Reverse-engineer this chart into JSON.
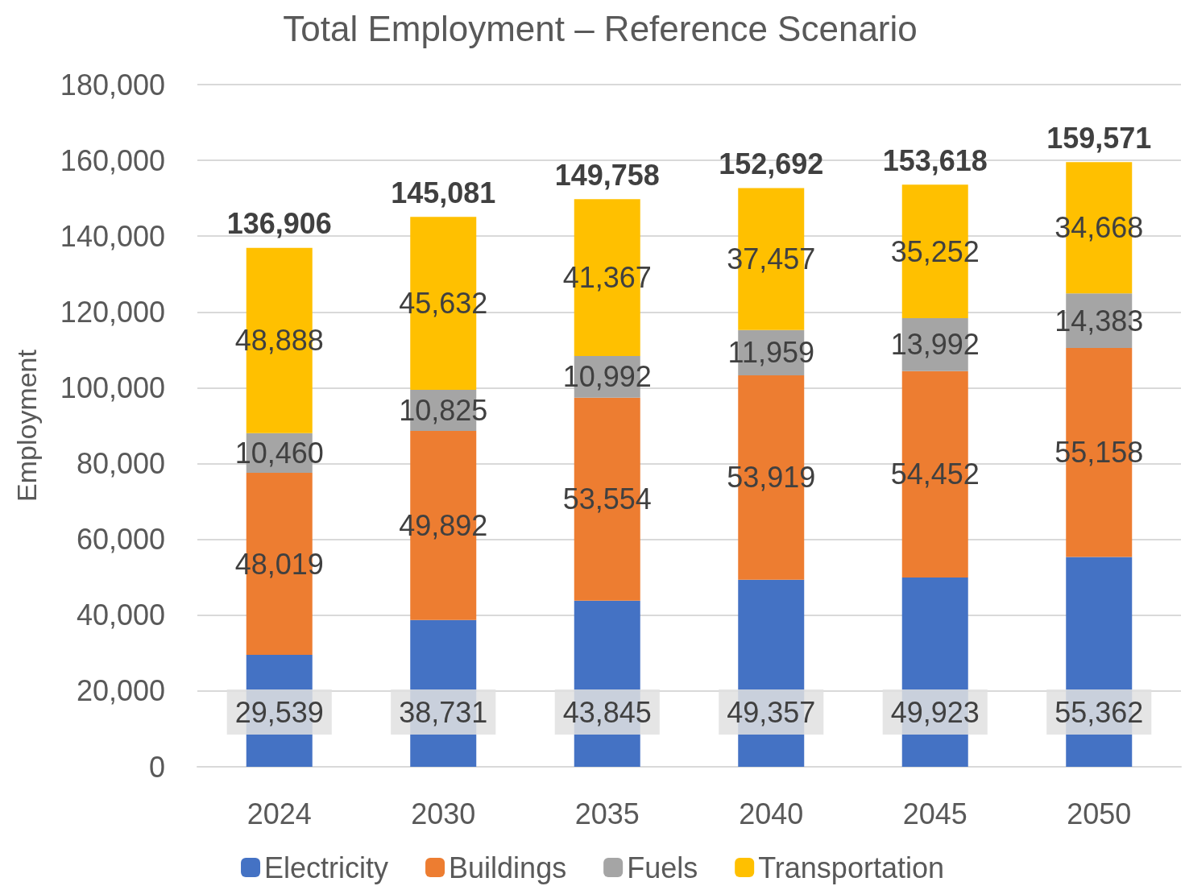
{
  "chart_data": {
    "type": "bar",
    "title": "Total Employment – Reference Scenario",
    "ylabel": "Employment",
    "categories": [
      "2024",
      "2030",
      "2035",
      "2040",
      "2045",
      "2050"
    ],
    "series": [
      {
        "name": "Electricity",
        "color": "#4472c4",
        "values": [
          29539,
          38731,
          43845,
          49357,
          49923,
          55362
        ],
        "value_labels": [
          "29,539",
          "38,731",
          "43,845",
          "49,357",
          "49,923",
          "55,362"
        ]
      },
      {
        "name": "Buildings",
        "color": "#ed7d31",
        "values": [
          48019,
          49892,
          53554,
          53919,
          54452,
          55158
        ],
        "value_labels": [
          "48,019",
          "49,892",
          "53,554",
          "53,919",
          "54,452",
          "55,158"
        ]
      },
      {
        "name": "Fuels",
        "color": "#a5a5a5",
        "values": [
          10460,
          10825,
          10992,
          11959,
          13992,
          14383
        ],
        "value_labels": [
          "10,460",
          "10,825",
          "10,992",
          "11,959",
          "13,992",
          "14,383"
        ]
      },
      {
        "name": "Transportation",
        "color": "#ffc000",
        "values": [
          48888,
          45632,
          41367,
          37457,
          35252,
          34668
        ],
        "value_labels": [
          "48,888",
          "45,632",
          "41,367",
          "37,457",
          "35,252",
          "34,668"
        ]
      }
    ],
    "stacked": true,
    "ylim": [
      0,
      180000
    ],
    "yticks": [
      0,
      {
        "value": 20000,
        "label": "20,000"
      },
      {
        "value": 40000,
        "label": "40,000"
      },
      {
        "value": 60000,
        "label": "60,000"
      },
      {
        "value": 80000,
        "label": "80,000"
      },
      {
        "value": 100000,
        "label": "100,000"
      },
      {
        "value": 120000,
        "label": "120,000"
      },
      {
        "value": 140000,
        "label": "140,000"
      },
      {
        "value": 160000,
        "label": "160,000"
      },
      {
        "value": 180000,
        "label": "180,000"
      }
    ],
    "grid": "y",
    "legend": "bottom",
    "totals": [
      "136,906",
      "145,081",
      "149,758",
      "152,692",
      "153,618",
      "159,571"
    ]
  }
}
